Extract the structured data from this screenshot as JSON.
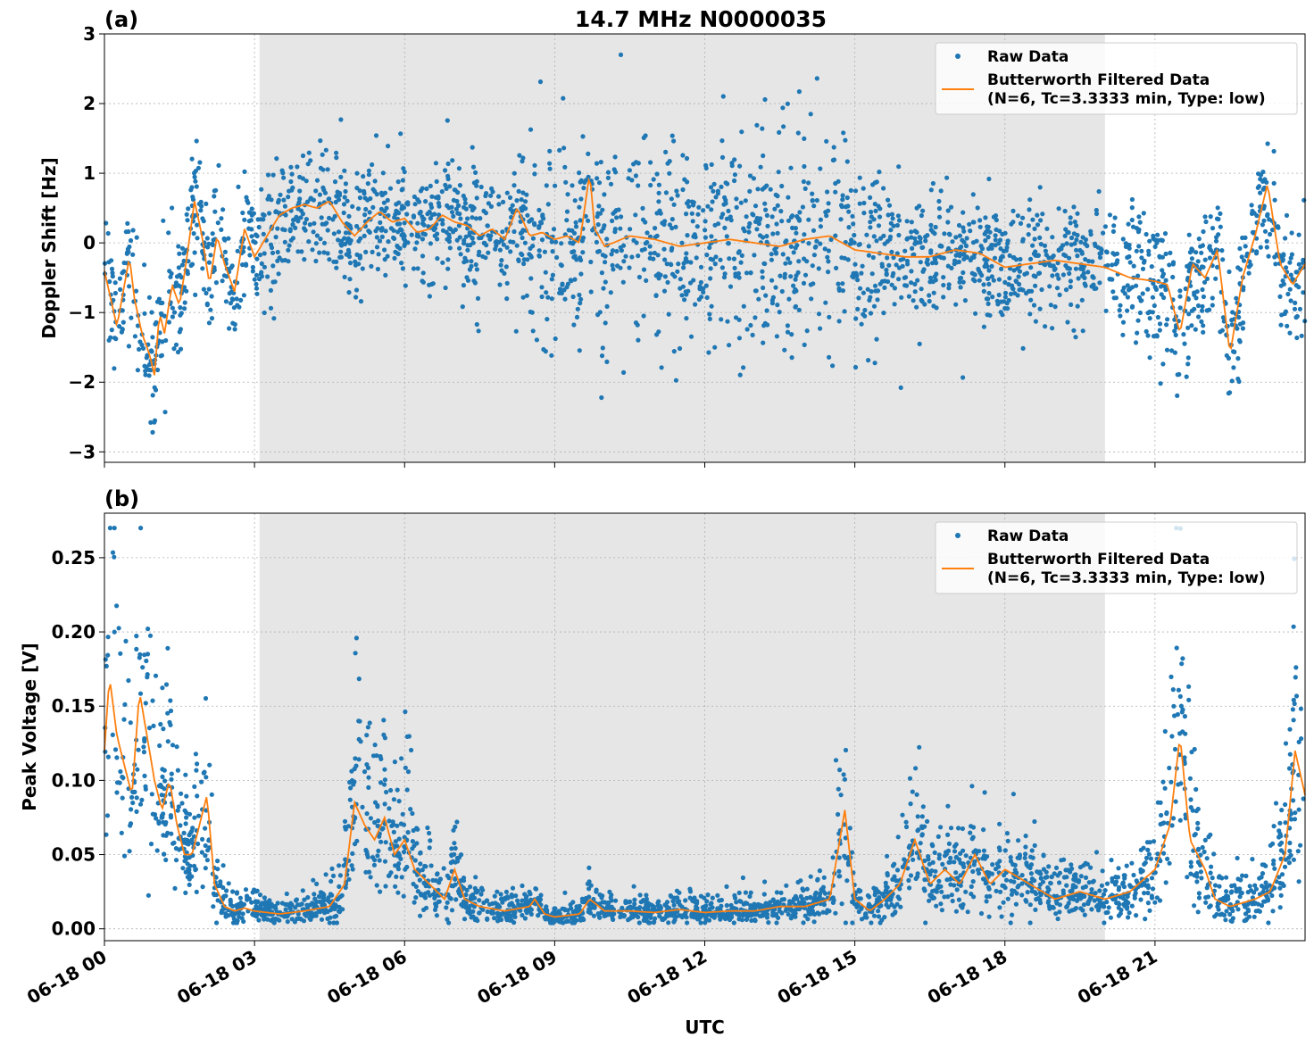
{
  "title": "14.7 MHz N0000035",
  "xlabel": "UTC",
  "x_tick_labels": [
    "06-18 00",
    "06-18 03",
    "06-18 06",
    "06-18 09",
    "06-18 12",
    "06-18 15",
    "06-18 18",
    "06-18 21"
  ],
  "colors": {
    "raw": "#1f77b4",
    "filtered": "#ff7f0e",
    "night_shade": "#e6e6e6"
  },
  "legend": {
    "raw_label": "Raw Data",
    "filtered_label_line1": "Butterworth Filtered Data",
    "filtered_label_line2": "(N=6, Tc=3.3333 min, Type: low)"
  },
  "chart_data": [
    {
      "type": "scatter",
      "panel_label": "(a)",
      "ylabel": "Doppler Shift [Hz]",
      "xlim_hours": [
        0,
        24
      ],
      "ylim": [
        -3.15,
        3.0
      ],
      "yticks": [
        -3,
        -2,
        -1,
        0,
        1,
        2,
        3
      ],
      "y_tick_labels": [
        "−3",
        "−2",
        "−1",
        "0",
        "1",
        "2",
        "3"
      ],
      "grid": true,
      "legend_position": "top-right",
      "shaded_interval_hours": [
        3.1,
        20.0
      ],
      "series": [
        {
          "name": "Butterworth Filtered Data",
          "kind": "line",
          "x_hours": [
            0,
            0.25,
            0.5,
            0.6,
            0.75,
            0.9,
            1.0,
            1.1,
            1.2,
            1.35,
            1.5,
            1.65,
            1.8,
            1.95,
            2.1,
            2.25,
            2.4,
            2.6,
            2.8,
            3.0,
            3.25,
            3.5,
            3.75,
            4.0,
            4.25,
            4.5,
            4.75,
            5.0,
            5.25,
            5.5,
            5.75,
            6.0,
            6.25,
            6.5,
            6.75,
            7.0,
            7.25,
            7.5,
            7.75,
            8.0,
            8.25,
            8.5,
            8.75,
            9.0,
            9.25,
            9.5,
            9.7,
            9.8,
            10.0,
            10.5,
            11.0,
            11.5,
            12.0,
            12.5,
            13.0,
            13.5,
            14.0,
            14.5,
            15.0,
            15.5,
            16.0,
            16.5,
            17.0,
            17.5,
            18.0,
            18.5,
            19.0,
            19.5,
            20.0,
            20.5,
            21.0,
            21.25,
            21.5,
            21.75,
            22.0,
            22.25,
            22.5,
            22.75,
            23.0,
            23.25,
            23.5,
            23.75,
            24.0
          ],
          "values": [
            -0.4,
            -1.2,
            -0.2,
            -0.8,
            -1.3,
            -1.6,
            -1.9,
            -1.0,
            -1.3,
            -0.6,
            -0.9,
            -0.2,
            0.6,
            0.1,
            -0.6,
            0.1,
            -0.3,
            -0.7,
            0.2,
            -0.2,
            0.1,
            0.4,
            0.5,
            0.55,
            0.5,
            0.6,
            0.3,
            0.1,
            0.3,
            0.45,
            0.3,
            0.35,
            0.15,
            0.2,
            0.4,
            0.3,
            0.25,
            0.1,
            0.2,
            0.05,
            0.5,
            0.1,
            0.15,
            0.05,
            0.1,
            0.0,
            1.0,
            0.2,
            -0.05,
            0.1,
            0.05,
            -0.05,
            0.0,
            0.05,
            0.0,
            -0.05,
            0.05,
            0.1,
            -0.1,
            -0.15,
            -0.2,
            -0.2,
            -0.1,
            -0.15,
            -0.35,
            -0.3,
            -0.25,
            -0.3,
            -0.35,
            -0.5,
            -0.55,
            -0.6,
            -1.3,
            -0.3,
            -0.5,
            -0.1,
            -1.6,
            -0.5,
            0.1,
            0.85,
            -0.3,
            -0.6,
            -0.3
          ]
        },
        {
          "name": "Raw Data",
          "kind": "points",
          "spread_hz": 0.45,
          "points_shown_as": "dense scatter around filtered curve"
        }
      ]
    },
    {
      "type": "scatter",
      "panel_label": "(b)",
      "ylabel": "Peak Voltage [V]",
      "xlim_hours": [
        0,
        24
      ],
      "ylim": [
        -0.008,
        0.28
      ],
      "yticks": [
        0.0,
        0.05,
        0.1,
        0.15,
        0.2,
        0.25
      ],
      "y_tick_labels": [
        "0.00",
        "0.05",
        "0.10",
        "0.15",
        "0.20",
        "0.25"
      ],
      "grid": true,
      "legend_position": "top-right",
      "shaded_interval_hours": [
        3.1,
        20.0
      ],
      "series": [
        {
          "name": "Butterworth Filtered Data",
          "kind": "line",
          "x_hours": [
            0,
            0.1,
            0.25,
            0.4,
            0.55,
            0.7,
            0.85,
            1.0,
            1.15,
            1.3,
            1.45,
            1.6,
            1.75,
            1.9,
            2.05,
            2.2,
            2.4,
            2.6,
            2.8,
            3.0,
            3.5,
            4.0,
            4.5,
            4.8,
            5.0,
            5.2,
            5.4,
            5.6,
            5.8,
            6.0,
            6.2,
            6.5,
            6.8,
            7.0,
            7.2,
            7.5,
            8.0,
            8.5,
            8.6,
            8.8,
            9.0,
            9.5,
            9.7,
            10.0,
            10.5,
            11.0,
            11.5,
            12.0,
            12.5,
            13.0,
            13.5,
            14.0,
            14.5,
            14.8,
            15.0,
            15.3,
            15.6,
            15.9,
            16.2,
            16.5,
            16.8,
            17.1,
            17.4,
            17.7,
            18.0,
            18.5,
            19.0,
            19.5,
            20.0,
            20.5,
            21.0,
            21.3,
            21.5,
            21.7,
            22.0,
            22.2,
            22.5,
            23.0,
            23.3,
            23.6,
            23.8,
            24.0
          ],
          "values": [
            0.12,
            0.17,
            0.13,
            0.11,
            0.09,
            0.16,
            0.13,
            0.1,
            0.08,
            0.1,
            0.07,
            0.05,
            0.05,
            0.07,
            0.09,
            0.03,
            0.015,
            0.012,
            0.014,
            0.012,
            0.01,
            0.012,
            0.015,
            0.03,
            0.085,
            0.07,
            0.06,
            0.075,
            0.05,
            0.06,
            0.04,
            0.03,
            0.02,
            0.04,
            0.02,
            0.015,
            0.012,
            0.015,
            0.02,
            0.01,
            0.008,
            0.01,
            0.02,
            0.012,
            0.012,
            0.011,
            0.013,
            0.011,
            0.012,
            0.012,
            0.015,
            0.015,
            0.02,
            0.08,
            0.02,
            0.012,
            0.02,
            0.03,
            0.06,
            0.03,
            0.04,
            0.03,
            0.05,
            0.03,
            0.04,
            0.03,
            0.02,
            0.025,
            0.02,
            0.025,
            0.04,
            0.07,
            0.13,
            0.06,
            0.04,
            0.02,
            0.015,
            0.02,
            0.025,
            0.05,
            0.12,
            0.09
          ]
        },
        {
          "name": "Raw Data",
          "kind": "points",
          "spread_rel": 0.55,
          "points_shown_as": "dense scatter around filtered curve"
        }
      ]
    }
  ]
}
